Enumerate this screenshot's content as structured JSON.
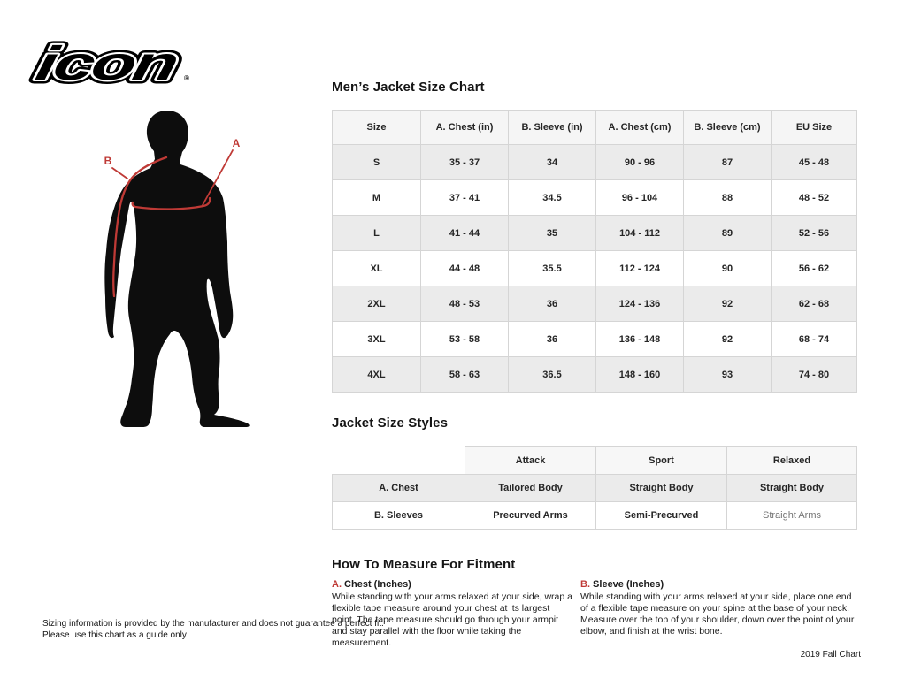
{
  "logo": {
    "text": "icon",
    "registered": "®"
  },
  "figure": {
    "label_a": "A",
    "label_b": "B",
    "accent_red": "#bf3a36",
    "silhouette_black": "#0d0d0d"
  },
  "size_chart": {
    "title": "Men’s Jacket Size Chart",
    "columns": [
      "Size",
      "A. Chest (in)",
      "B. Sleeve (in)",
      "A. Chest (cm)",
      "B. Sleeve (cm)",
      "EU Size"
    ],
    "rows": [
      [
        "S",
        "35 - 37",
        "34",
        "90 - 96",
        "87",
        "45 - 48"
      ],
      [
        "M",
        "37 - 41",
        "34.5",
        "96 - 104",
        "88",
        "48 - 52"
      ],
      [
        "L",
        "41 - 44",
        "35",
        "104 - 112",
        "89",
        "52 - 56"
      ],
      [
        "XL",
        "44 - 48",
        "35.5",
        "112 - 124",
        "90",
        "56 - 62"
      ],
      [
        "2XL",
        "48 - 53",
        "36",
        "124 - 136",
        "92",
        "62 - 68"
      ],
      [
        "3XL",
        "53 - 58",
        "36",
        "136 - 148",
        "92",
        "68 - 74"
      ],
      [
        "4XL",
        "58 - 63",
        "36.5",
        "148 - 160",
        "93",
        "74 - 80"
      ]
    ]
  },
  "styles_table": {
    "title": "Jacket Size Styles",
    "columns": [
      "",
      "Attack",
      "Sport",
      "Relaxed"
    ],
    "rows": [
      [
        "A. Chest",
        "Tailored Body",
        "Straight Body",
        "Straight Body"
      ],
      [
        "B. Sleeves",
        "Precurved Arms",
        "Semi-Precurved",
        "Straight Arms"
      ]
    ]
  },
  "measure": {
    "title": "How To Measure For Fitment",
    "items": [
      {
        "letter": "A.",
        "heading": " Chest (Inches)",
        "body": "While standing with your arms relaxed at your side, wrap a flexible tape measure around your chest at its largest point. The tape measure should go through your armpit and stay parallel with the floor while taking the measurement."
      },
      {
        "letter": "B.",
        "heading": " Sleeve (Inches)",
        "body": "While standing with your arms relaxed at your side, place one end of a flexible tape measure on your spine at the base of your neck. Measure over the top of your shoulder, down over the point of your elbow, and finish at the wrist bone."
      }
    ]
  },
  "disclaimer": {
    "line1": "Sizing information is provided by the manufacturer and does not guarantee a perfect fit.",
    "line2": "Please use this chart as a guide only"
  },
  "footer": {
    "edition": "2019 Fall Chart"
  }
}
